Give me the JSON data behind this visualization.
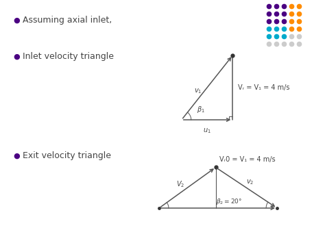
{
  "bg_color": "#ffffff",
  "text_color": "#444444",
  "bullet_color": "#4b0082",
  "line_color": "#555555",
  "text1": "Assuming axial inlet,",
  "text2": "Inlet velocity triangle",
  "text3": "Exit velocity triangle",
  "inlet_label": "Vᵣ = V₁ = 4 m/s",
  "exit_label": "Vᵣ0 = V₁ = 4 m/s",
  "dot_colors_grid": [
    [
      "#4b0082",
      "#4b0082",
      "#4b0082",
      "#ff8c00",
      "#ff8c00"
    ],
    [
      "#4b0082",
      "#4b0082",
      "#4b0082",
      "#ff8c00",
      "#ff8c00"
    ],
    [
      "#4b0082",
      "#4b0082",
      "#4b0082",
      "#ff8c00",
      "#ff8c00"
    ],
    [
      "#00aacc",
      "#00aacc",
      "#00aacc",
      "#ff8c00",
      "#ff8c00"
    ],
    [
      "#00aacc",
      "#00aacc",
      "#00aacc",
      "#cccccc",
      "#cccccc"
    ],
    [
      "#cccccc",
      "#cccccc",
      "#cccccc",
      "#cccccc",
      "#cccccc"
    ]
  ],
  "figsize": [
    4.74,
    3.55
  ],
  "dpi": 100
}
